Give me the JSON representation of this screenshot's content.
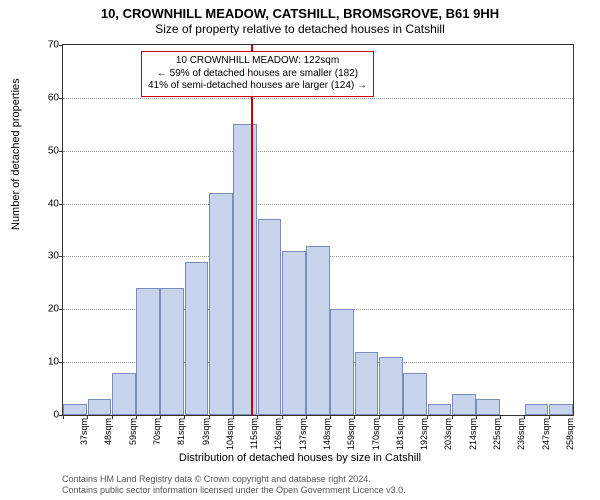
{
  "title_main": "10, CROWNHILL MEADOW, CATSHILL, BROMSGROVE, B61 9HH",
  "title_sub": "Size of property relative to detached houses in Catshill",
  "ylabel": "Number of detached properties",
  "xlabel": "Distribution of detached houses by size in Catshill",
  "chart": {
    "type": "histogram",
    "ylim": [
      0,
      70
    ],
    "ytick_step": 10,
    "background_color": "#ffffff",
    "grid_color": "#999999",
    "bar_fill": "#c8d4ec",
    "bar_border": "#7a8db8",
    "marker_color": "#cc0000",
    "marker_x_value": 122,
    "x_start": 37,
    "x_step": 11,
    "bars": [
      {
        "label": "37sqm",
        "value": 2
      },
      {
        "label": "48sqm",
        "value": 3
      },
      {
        "label": "59sqm",
        "value": 8
      },
      {
        "label": "70sqm",
        "value": 24
      },
      {
        "label": "81sqm",
        "value": 24
      },
      {
        "label": "93sqm",
        "value": 29
      },
      {
        "label": "104sqm",
        "value": 42
      },
      {
        "label": "115sqm",
        "value": 55
      },
      {
        "label": "126sqm",
        "value": 37
      },
      {
        "label": "137sqm",
        "value": 31
      },
      {
        "label": "148sqm",
        "value": 32
      },
      {
        "label": "159sqm",
        "value": 20
      },
      {
        "label": "170sqm",
        "value": 12
      },
      {
        "label": "181sqm",
        "value": 11
      },
      {
        "label": "192sqm",
        "value": 8
      },
      {
        "label": "203sqm",
        "value": 2
      },
      {
        "label": "214sqm",
        "value": 4
      },
      {
        "label": "225sqm",
        "value": 3
      },
      {
        "label": "236sqm",
        "value": 0
      },
      {
        "label": "247sqm",
        "value": 2
      },
      {
        "label": "258sqm",
        "value": 2
      }
    ]
  },
  "annotation": {
    "line1": "10 CROWNHILL MEADOW: 122sqm",
    "line2": "← 59% of detached houses are smaller (182)",
    "line3": "41% of semi-detached houses are larger (124) →"
  },
  "attribution": {
    "line1": "Contains HM Land Registry data © Crown copyright and database right 2024.",
    "line2": "Contains public sector information licensed under the Open Government Licence v3.0."
  }
}
